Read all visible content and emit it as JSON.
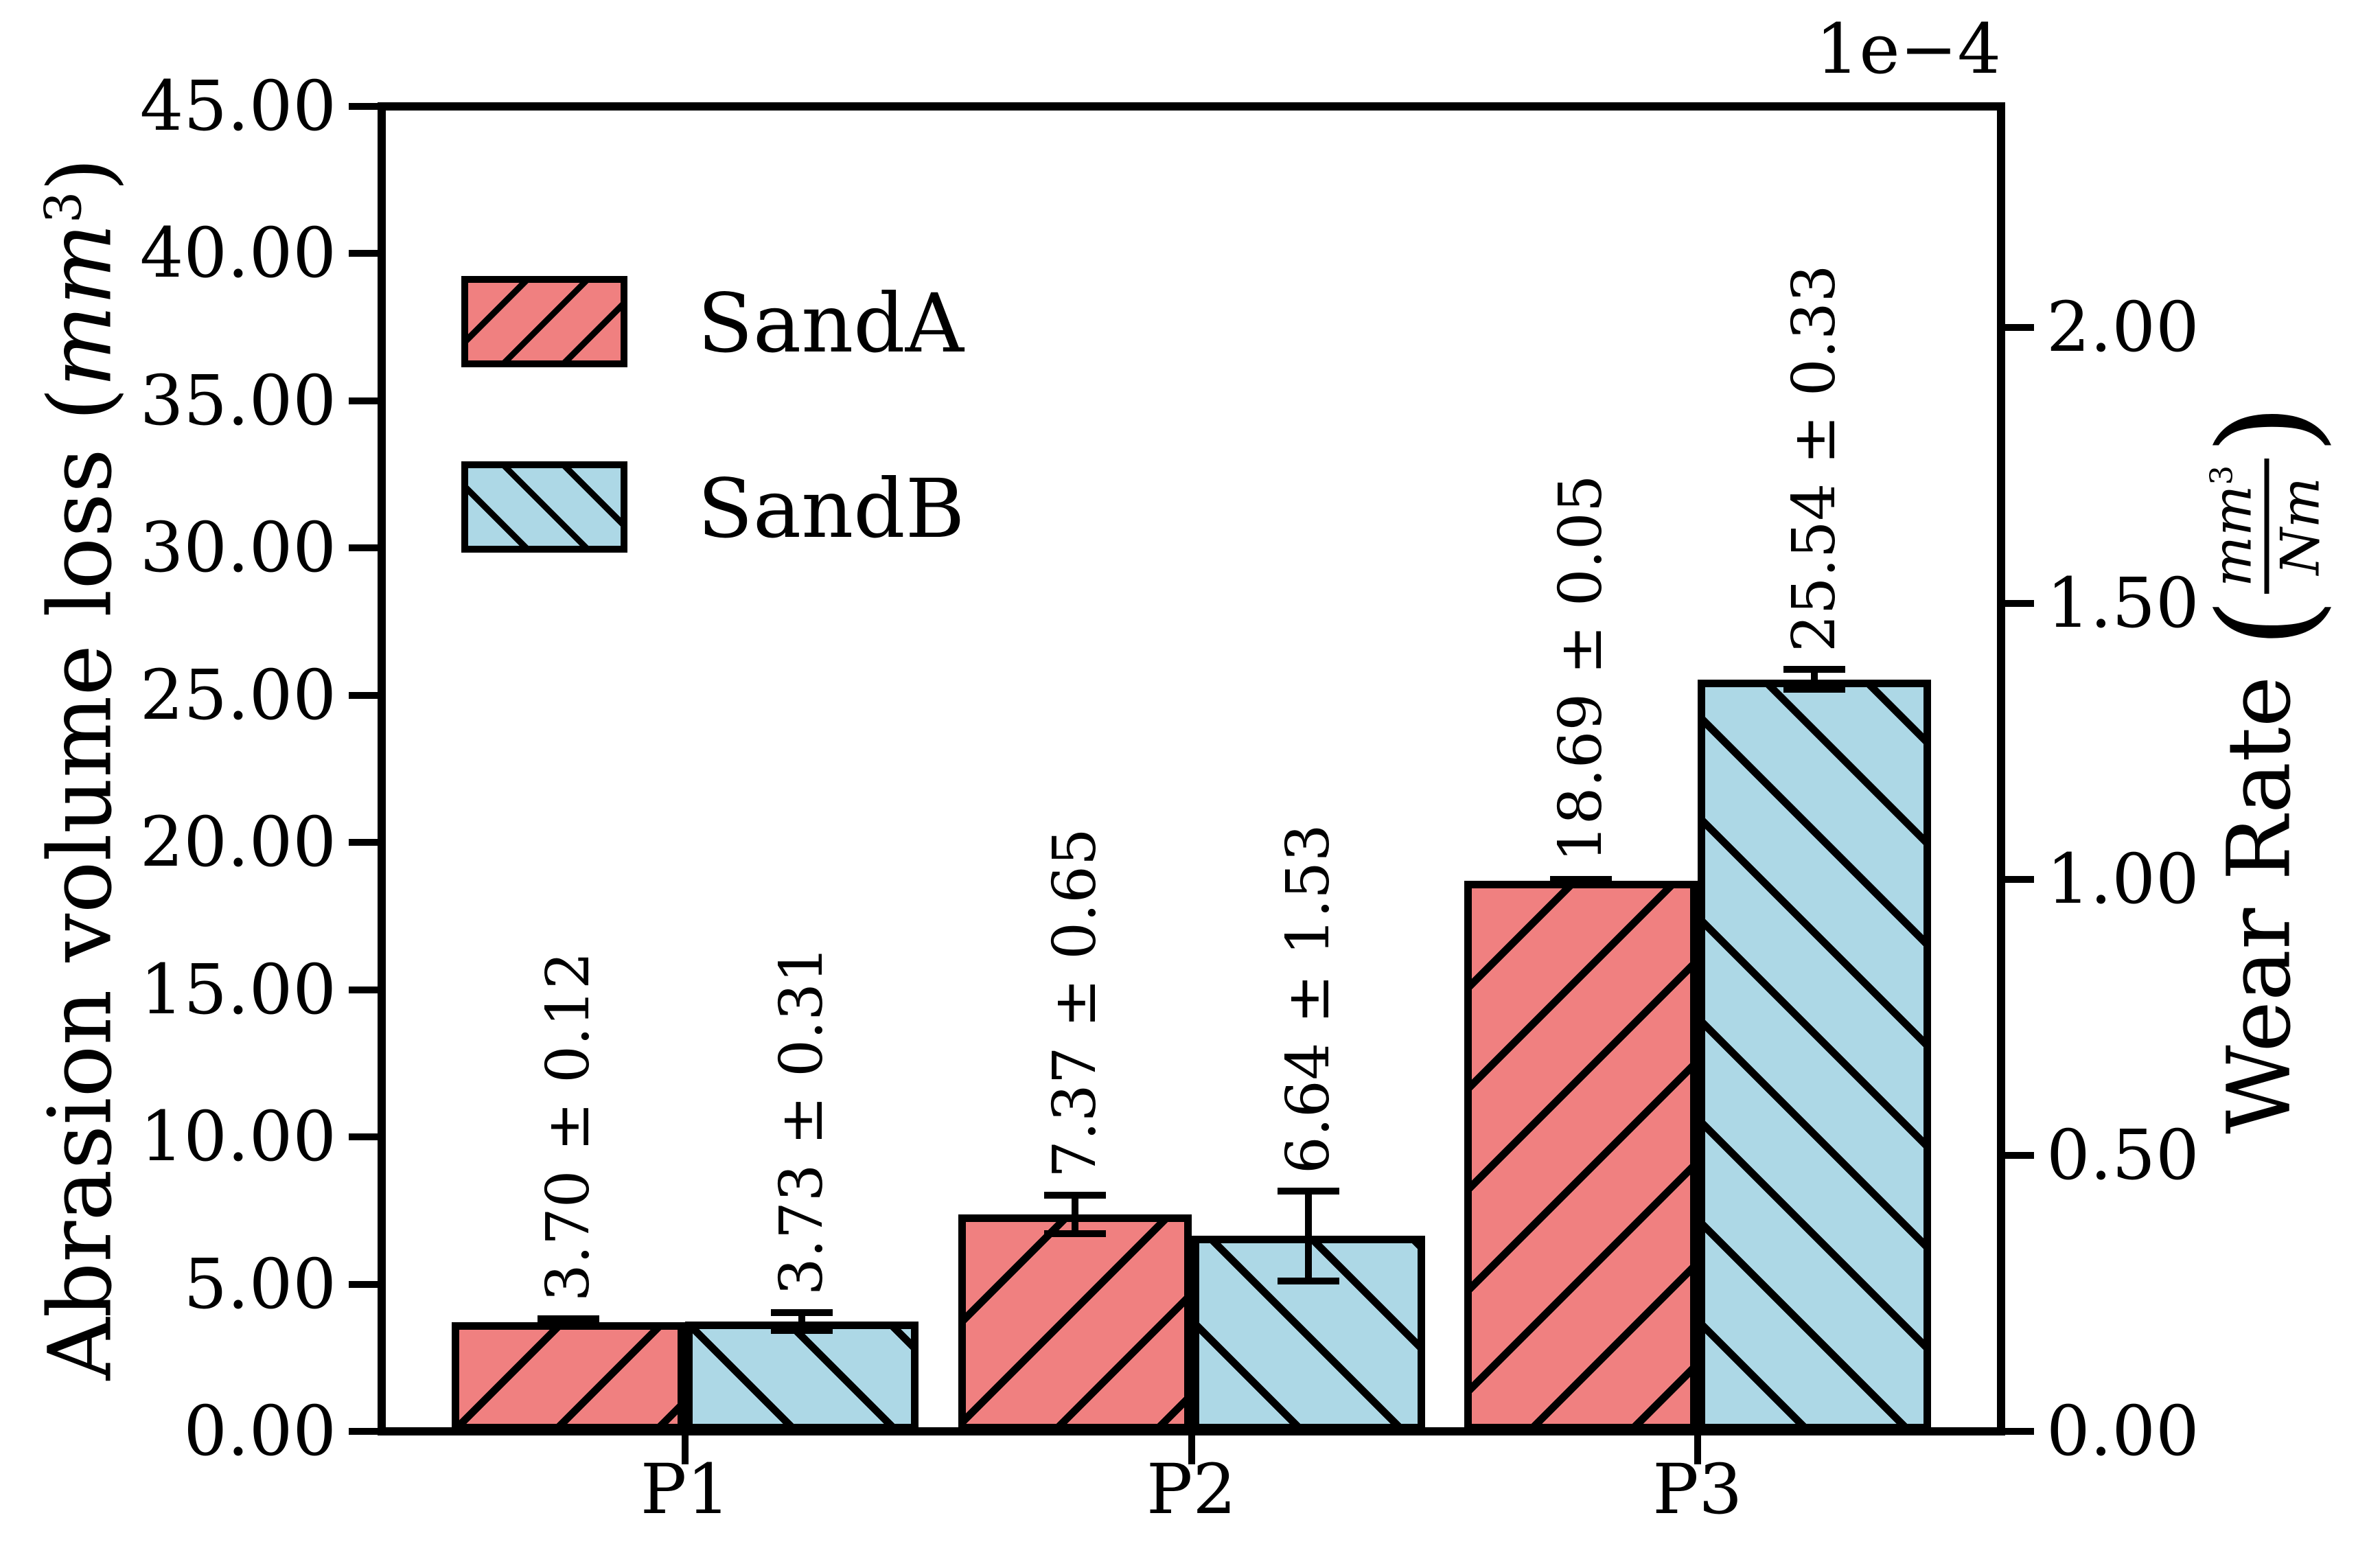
{
  "figure": {
    "background": "#ffffff"
  },
  "left_axis": {
    "min": 0,
    "max": 45,
    "label": {
      "prefix": "Abrasion volume loss (",
      "unit": "mm",
      "sup": "3",
      "close": ")"
    },
    "ticks": [
      {
        "v": 0,
        "label": "0.00"
      },
      {
        "v": 5,
        "label": "5.00"
      },
      {
        "v": 10,
        "label": "10.00"
      },
      {
        "v": 15,
        "label": "15.00"
      },
      {
        "v": 20,
        "label": "20.00"
      },
      {
        "v": 25,
        "label": "25.00"
      },
      {
        "v": 30,
        "label": "30.00"
      },
      {
        "v": 35,
        "label": "35.00"
      },
      {
        "v": 40,
        "label": "40.00"
      },
      {
        "v": 45,
        "label": "45.00"
      }
    ]
  },
  "right_axis": {
    "min": 0,
    "max": 2.4,
    "offset_text": "1e−4",
    "label": {
      "prefix": "Wear Rate ",
      "open": "(",
      "frac_num": "mm",
      "frac_num_sup": "3",
      "frac_den": "Nm",
      "close": ")"
    },
    "ticks": [
      {
        "v": 0,
        "label": "0.00"
      },
      {
        "v": 0.5,
        "label": "0.50"
      },
      {
        "v": 1,
        "label": "1.00"
      },
      {
        "v": 1.5,
        "label": "1.50"
      },
      {
        "v": 2,
        "label": "2.00"
      }
    ]
  },
  "x_axis": {
    "categories": [
      "P1",
      "P2",
      "P3"
    ]
  },
  "legend": {
    "items": [
      {
        "label": "SandA",
        "color": "#f08080",
        "hatch": "/"
      },
      {
        "label": "SandB",
        "color": "#add8e6",
        "hatch": "\\"
      }
    ]
  },
  "chart_data": {
    "type": "bar",
    "title": "",
    "xlabel": "",
    "ylabel_left": "Abrasion volume loss (mm³)",
    "ylabel_right": "Wear Rate (mm³/Nm)",
    "right_axis_offset": "1e−4",
    "ylim_left": [
      0,
      45
    ],
    "ylim_right_1e-4": [
      0,
      2.4
    ],
    "grid": false,
    "legend_position": "upper left",
    "value_label_rotation": 90,
    "categories": [
      "P1",
      "P2",
      "P3"
    ],
    "series": [
      {
        "name": "SandA",
        "color": "#f08080",
        "hatch": "/",
        "values": [
          3.7,
          7.37,
          18.69
        ],
        "errors": [
          0.12,
          0.65,
          0.05
        ],
        "labels": [
          "3.70 ± 0.12",
          "7.37 ± 0.65",
          "18.69 ± 0.05"
        ]
      },
      {
        "name": "SandB",
        "color": "#add8e6",
        "hatch": "\\",
        "values": [
          3.73,
          6.64,
          25.54
        ],
        "errors": [
          0.31,
          1.53,
          0.33
        ],
        "labels": [
          "3.73 ± 0.31",
          "6.64 ± 1.53",
          "25.54 ± 0.33"
        ]
      }
    ]
  }
}
